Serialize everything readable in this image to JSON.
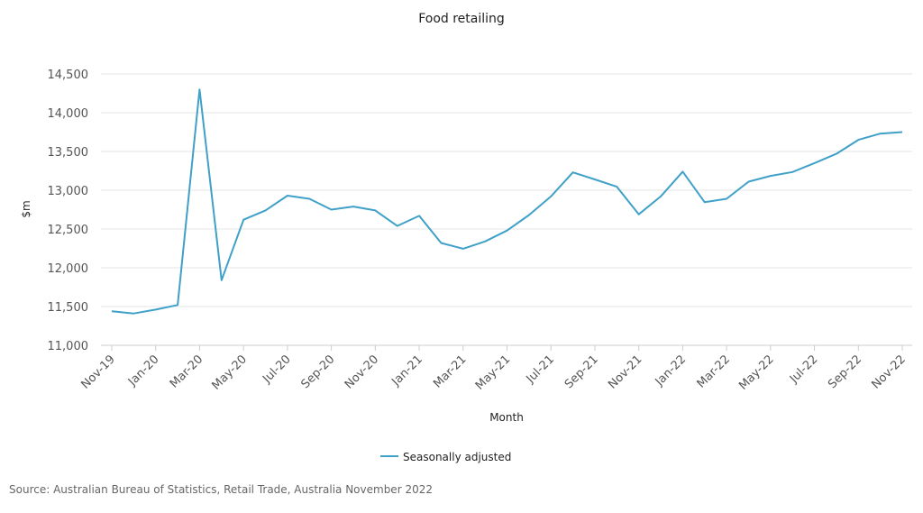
{
  "chart_data": {
    "type": "line",
    "title": "Food retailing",
    "xlabel": "Month",
    "ylabel": "$m",
    "ylim": [
      11000,
      14500
    ],
    "yticks": [
      "11,000",
      "11,500",
      "12,000",
      "12,500",
      "13,000",
      "13,500",
      "14,000",
      "14,500"
    ],
    "ytick_values": [
      11000,
      11500,
      12000,
      12500,
      13000,
      13500,
      14000,
      14500
    ],
    "x": [
      "Nov-19",
      "Dec-19",
      "Jan-20",
      "Feb-20",
      "Mar-20",
      "Apr-20",
      "May-20",
      "Jun-20",
      "Jul-20",
      "Aug-20",
      "Sep-20",
      "Oct-20",
      "Nov-20",
      "Dec-20",
      "Jan-21",
      "Feb-21",
      "Mar-21",
      "Apr-21",
      "May-21",
      "Jun-21",
      "Jul-21",
      "Aug-21",
      "Sep-21",
      "Oct-21",
      "Nov-21",
      "Dec-21",
      "Jan-22",
      "Feb-22",
      "Mar-22",
      "Apr-22",
      "May-22",
      "Jun-22",
      "Jul-22",
      "Aug-22",
      "Sep-22",
      "Oct-22",
      "Nov-22"
    ],
    "xtick_labels": [
      "Nov-19",
      "Jan-20",
      "Mar-20",
      "May-20",
      "Jul-20",
      "Sep-20",
      "Nov-20",
      "Jan-21",
      "Mar-21",
      "May-21",
      "Jul-21",
      "Sep-21",
      "Nov-21",
      "Jan-22",
      "Mar-22",
      "May-22",
      "Jul-22",
      "Sep-22",
      "Nov-22"
    ],
    "series": [
      {
        "name": "Seasonally adjusted",
        "color": "#3fa0c8",
        "values": [
          11440,
          11410,
          11460,
          11520,
          14300,
          11840,
          12620,
          12740,
          12930,
          12890,
          12750,
          12790,
          12740,
          12540,
          12670,
          12320,
          12245,
          12340,
          12480,
          12680,
          12920,
          13230,
          13140,
          13045,
          12690,
          12920,
          13240,
          12845,
          12890,
          13110,
          13185,
          13235,
          13350,
          13470,
          13650,
          13730,
          13750
        ]
      }
    ],
    "grid": true,
    "legend": "bottom-center",
    "source": "Source: Australian Bureau of Statistics, Retail Trade, Australia November 2022"
  }
}
